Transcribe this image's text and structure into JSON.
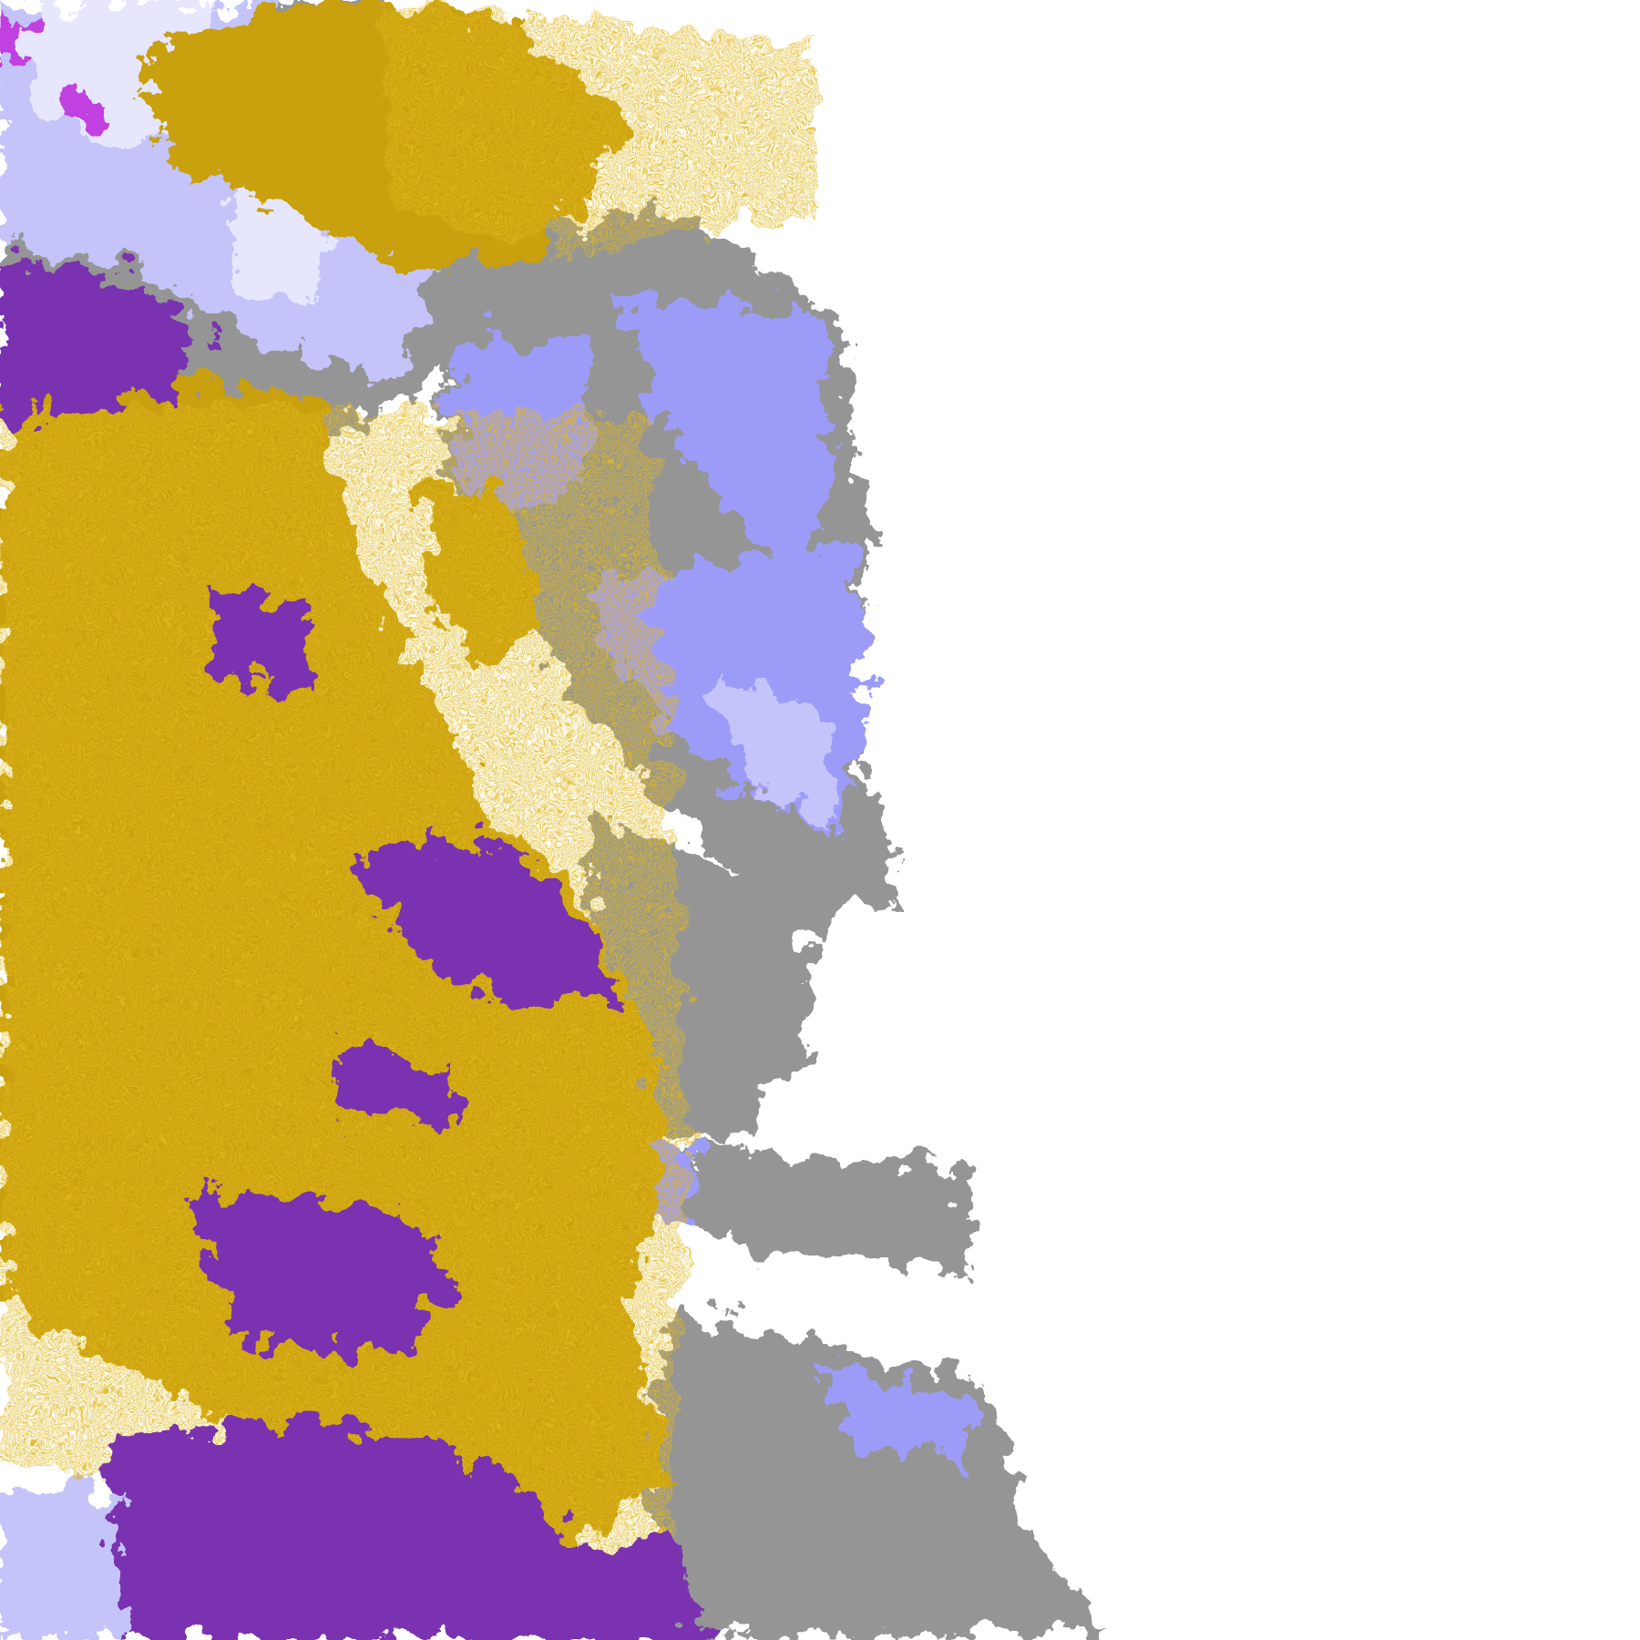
{
  "map": {
    "type": "classified satellite imagery",
    "colors": {
      "background": "#ffffff",
      "gold": "#c9a010",
      "gold_light": "#e0b820",
      "purple": "#7a32b0",
      "lavender_light": "#e6e6ff",
      "lavender": "#c4c4fa",
      "periwinkle": "#9c9cf8",
      "gray_light": "#b4b4b4",
      "gray": "#959595",
      "magenta": "#c040e0"
    }
  }
}
